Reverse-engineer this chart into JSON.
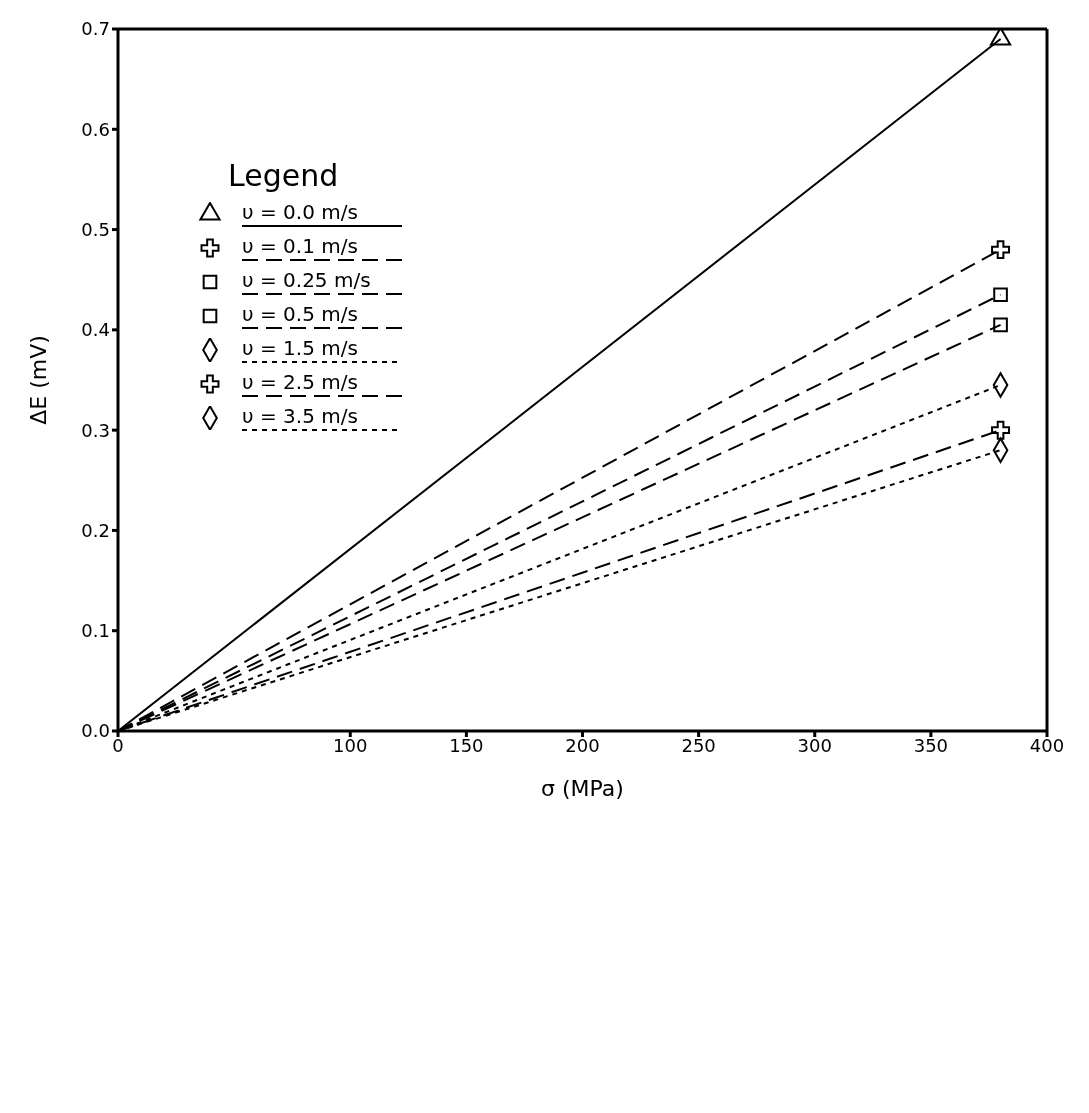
{
  "chart_data": {
    "type": "line",
    "xlabel": "σ (MPa)",
    "ylabel": "ΔE (mV)",
    "legend_title": "Legend",
    "legend": "top left",
    "grid": false,
    "x": [
      0,
      380
    ],
    "xlim": [
      0,
      400
    ],
    "xticks": [
      0,
      100,
      150,
      200,
      250,
      300,
      350,
      400
    ],
    "ylim": [
      0,
      0.7
    ],
    "yticks": [
      {
        "value": 0,
        "label": "0.0"
      },
      {
        "value": 0.1,
        "label": "0.1"
      },
      {
        "value": 0.2,
        "label": "0.2"
      },
      {
        "value": 0.3,
        "label": "0.3"
      },
      {
        "value": 0.4,
        "label": "0.4"
      },
      {
        "value": 0.5,
        "label": "0.5"
      },
      {
        "value": 0.6,
        "label": "0.6"
      },
      {
        "value": 0.7,
        "label": "0.7"
      }
    ],
    "series": [
      {
        "name": "υ = 0.0 m/s",
        "color": "#000000",
        "values": [
          0,
          0.69
        ],
        "marker": "triangle",
        "line_style": "solid"
      },
      {
        "name": "υ = 0.1 m/s",
        "color": "#000000",
        "values": [
          0,
          0.48
        ],
        "marker": "cross",
        "line_style": "dashed"
      },
      {
        "name": "υ = 0.25 m/s",
        "color": "#000000",
        "values": [
          0,
          0.435
        ],
        "marker": "square",
        "line_style": "dashed"
      },
      {
        "name": "υ = 0.5 m/s",
        "color": "#000000",
        "values": [
          0,
          0.405
        ],
        "marker": "square",
        "line_style": "dashed"
      },
      {
        "name": "υ = 1.5 m/s",
        "color": "#000000",
        "values": [
          0,
          0.345
        ],
        "marker": "diamond",
        "line_style": "dotted"
      },
      {
        "name": "υ = 2.5 m/s",
        "color": "#000000",
        "values": [
          0,
          0.3
        ],
        "marker": "cross",
        "line_style": "dashed"
      },
      {
        "name": "υ = 3.5 m/s",
        "color": "#000000",
        "values": [
          0,
          0.28
        ],
        "marker": "diamond",
        "line_style": "dotted"
      }
    ]
  }
}
